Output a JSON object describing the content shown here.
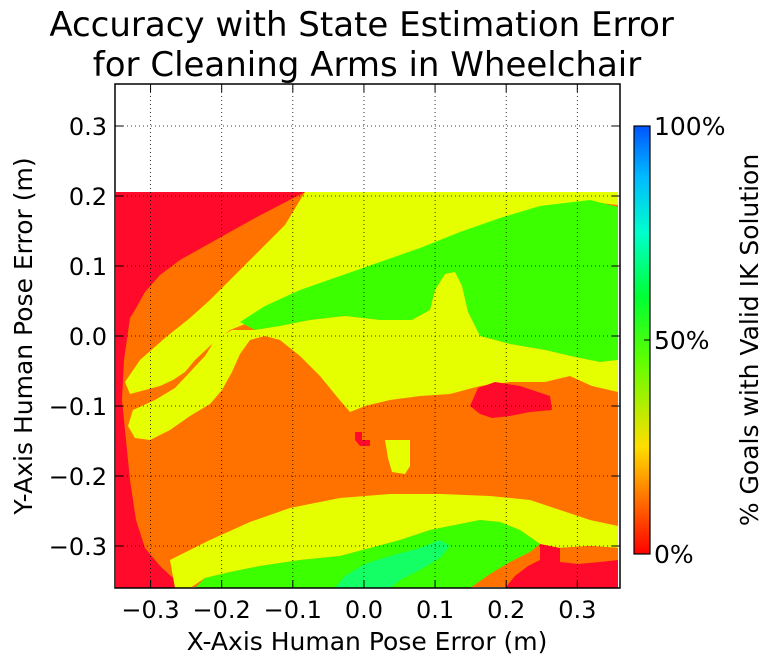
{
  "chart_data": {
    "type": "heatmap",
    "title": "Accuracy with State Estimation Error\nfor Cleaning Arms in Wheelchair",
    "xlabel": "X-Axis Human Pose Error (m)",
    "ylabel": "Y-Axis Human Pose Error (m)",
    "xlim": [
      -0.35,
      0.36
    ],
    "ylim": [
      -0.36,
      0.36
    ],
    "xticks": [
      -0.3,
      -0.2,
      -0.1,
      0.0,
      0.1,
      0.2,
      0.3
    ],
    "xtick_labels": [
      "−0.3",
      "−0.2",
      "−0.1",
      "0.0",
      "0.1",
      "0.2",
      "0.3"
    ],
    "yticks": [
      0.3,
      0.2,
      0.1,
      0.0,
      -0.1,
      -0.2,
      -0.3
    ],
    "ytick_labels": [
      "0.3",
      "0.2",
      "0.1",
      "0.0",
      "−0.1",
      "−0.2",
      "−0.3"
    ],
    "grid": true,
    "data_extent": {
      "x": [
        -0.35,
        0.355
      ],
      "y": [
        -0.355,
        0.2
      ]
    },
    "colorbar": {
      "label": "% Goals with Valid IK Solution",
      "ticks": [
        "0%",
        "50%",
        "100%"
      ],
      "range": [
        0,
        100
      ]
    },
    "regions": [
      {
        "level": 0,
        "color": "#ff0a2a",
        "desc": "top-left corner"
      },
      {
        "level": 18,
        "color": "#ff7200",
        "desc": "main body"
      },
      {
        "level": 33,
        "color": "#e6ff00",
        "desc": "bands"
      },
      {
        "level": 45,
        "color": "#3cff00",
        "desc": "upper right and lower band"
      },
      {
        "level": 55,
        "color": "#14ff66",
        "desc": "bottom center"
      }
    ]
  }
}
